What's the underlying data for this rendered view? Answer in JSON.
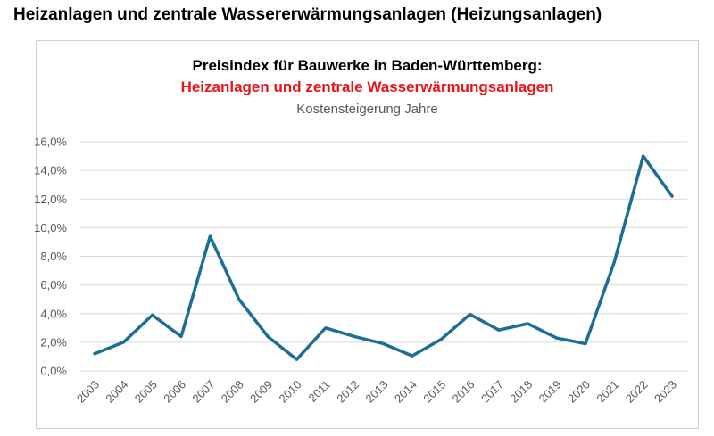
{
  "page": {
    "heading": "Heizanlagen und zentrale Wassererwärmungsanlagen (Heizungsanlagen)"
  },
  "colors": {
    "series": "#1d6e94",
    "subtitle": "#e8141b",
    "grid": "#d9d9d9",
    "tick_text": "#595959"
  },
  "chart_data": {
    "type": "line",
    "title": "Preisindex für Bauwerke in Baden-Württemberg:",
    "subtitle": "Heizanlagen und zentrale Wasserwärmungsanlagen",
    "caption": "Kostensteigerung Jahre",
    "xlabel": "",
    "ylabel": "",
    "categories": [
      "2003",
      "2004",
      "2005",
      "2006",
      "2007",
      "2008",
      "2009",
      "2010",
      "2011",
      "2012",
      "2013",
      "2014",
      "2015",
      "2016",
      "2017",
      "2018",
      "2019",
      "2020",
      "2021",
      "2022",
      "2023"
    ],
    "series": [
      {
        "name": "Kostensteigerung",
        "values": [
          1.2,
          2.0,
          3.9,
          2.4,
          9.4,
          5.0,
          2.4,
          0.8,
          3.0,
          2.4,
          1.9,
          1.05,
          2.2,
          3.95,
          2.85,
          3.3,
          2.3,
          1.9,
          7.6,
          15.0,
          12.2
        ]
      }
    ],
    "ylim": [
      0,
      16
    ],
    "ystep": 2,
    "ytick_labels": [
      "0,0%",
      "2,0%",
      "4,0%",
      "6,0%",
      "8,0%",
      "10,0%",
      "12,0%",
      "14,0%",
      "16,0%"
    ],
    "grid": true,
    "legend": "none"
  }
}
